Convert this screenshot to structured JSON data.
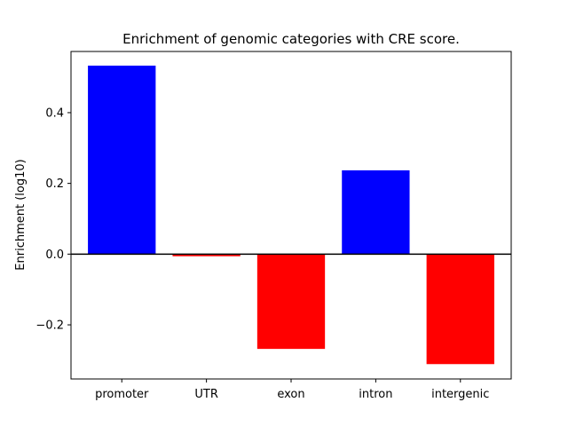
{
  "chart_data": {
    "type": "bar",
    "title": "Enrichment of genomic categories with CRE score.",
    "xlabel": "",
    "ylabel": "Enrichment (log10)",
    "categories": [
      "promoter",
      "UTR",
      "exon",
      "intron",
      "intergenic"
    ],
    "values": [
      0.533,
      -0.006,
      -0.268,
      0.237,
      -0.311
    ],
    "ylim": [
      -0.353,
      0.573
    ],
    "yticks": [
      -0.2,
      0.0,
      0.2,
      0.4
    ],
    "ytick_labels": [
      "−0.2",
      "0.0",
      "0.2",
      "0.4"
    ],
    "positive_color": "#0000ff",
    "negative_color": "#ff0000",
    "zero_line": true,
    "grid": false
  }
}
